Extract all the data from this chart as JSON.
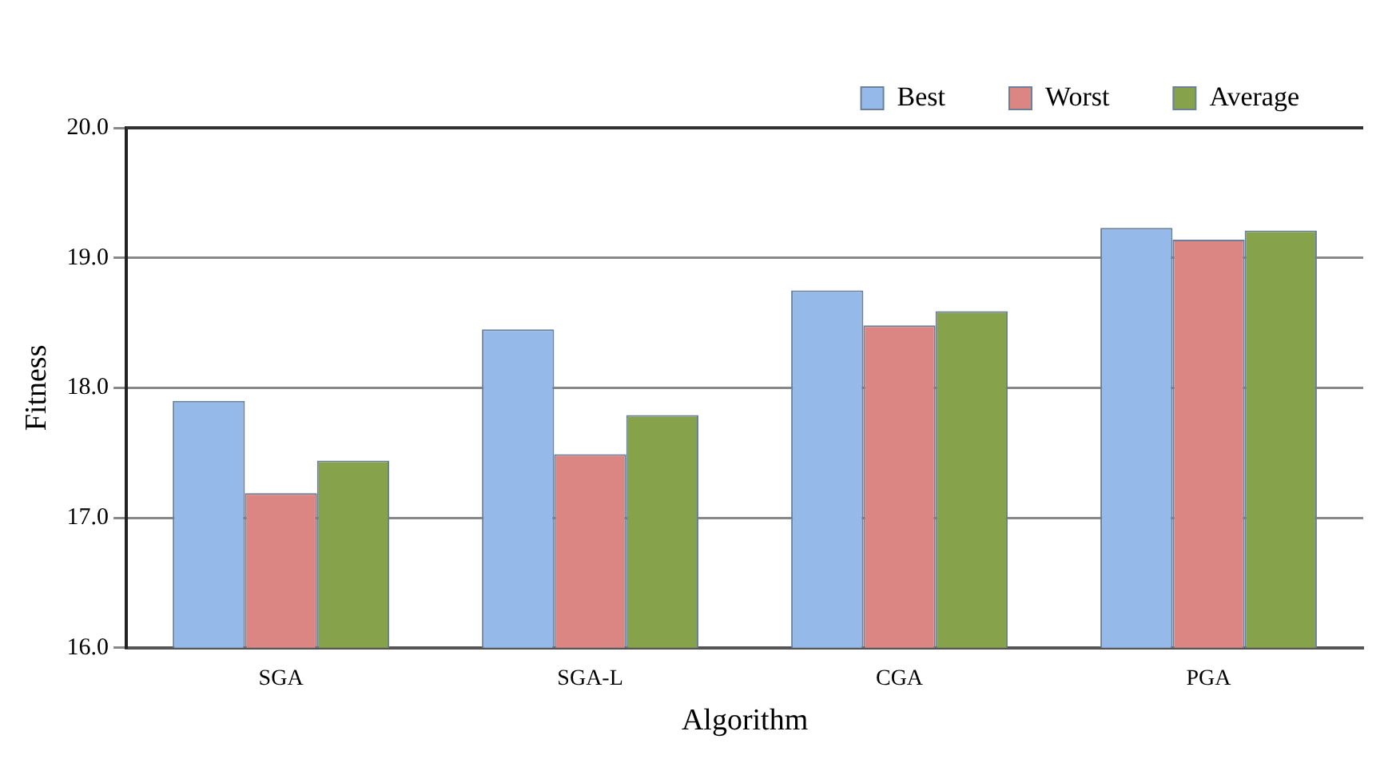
{
  "chart_data": {
    "type": "bar",
    "xlabel": "Algorithm",
    "ylabel": "Fitness",
    "categories": [
      "SGA",
      "SGA-L",
      "CGA",
      "PGA"
    ],
    "series": [
      {
        "name": "Best",
        "color": "#95b9e8",
        "values": [
          17.9,
          18.45,
          18.75,
          19.23
        ]
      },
      {
        "name": "Worst",
        "color": "#dc8683",
        "values": [
          17.19,
          17.49,
          18.48,
          19.14
        ]
      },
      {
        "name": "Average",
        "color": "#86a24a",
        "values": [
          17.44,
          17.79,
          18.59,
          19.21
        ]
      }
    ],
    "ylim": [
      16,
      20
    ],
    "yticks": [
      {
        "value": 16,
        "label": "16.0"
      },
      {
        "value": 17,
        "label": "17.0"
      },
      {
        "value": 18,
        "label": "18.0"
      },
      {
        "value": 19,
        "label": "19.0"
      },
      {
        "value": 20,
        "label": "20.0"
      }
    ],
    "grid": "y",
    "legend": "top right"
  }
}
